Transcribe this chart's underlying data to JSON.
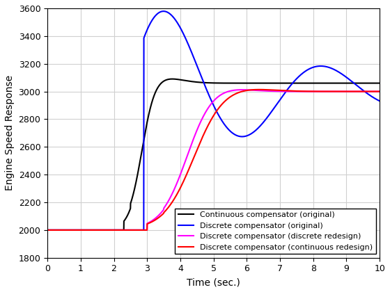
{
  "title": "",
  "xlabel": "Time (sec.)",
  "ylabel": "Engine Speed Response",
  "xlim": [
    0,
    10
  ],
  "ylim": [
    1800,
    3600
  ],
  "yticks": [
    1800,
    2000,
    2200,
    2400,
    2600,
    2800,
    3000,
    3200,
    3400,
    3600
  ],
  "xticks": [
    0,
    1,
    2,
    3,
    4,
    5,
    6,
    7,
    8,
    9,
    10
  ],
  "legend": [
    "Continuous compensator (original)",
    "Discrete compensator (original)",
    "Discrete compensator (discrete redesign)",
    "Discrete compensator (continuous redesign)"
  ],
  "colors": [
    "black",
    "blue",
    "magenta",
    "red"
  ],
  "linewidth": 1.5,
  "grid": true,
  "grid_color": "#d0d0d0",
  "background_color": "#ffffff",
  "legend_fontsize": 8,
  "axis_fontsize": 10
}
